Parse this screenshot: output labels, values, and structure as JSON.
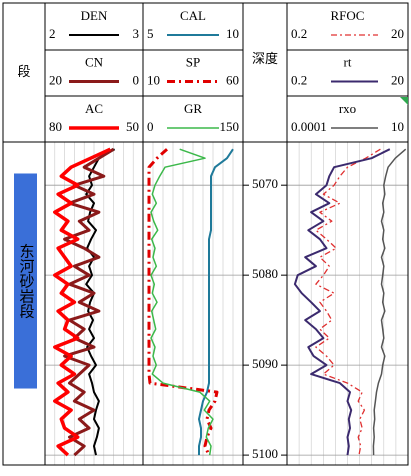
{
  "chart_data": {
    "type": "well_log",
    "zone_header": "段",
    "depth_label": "深度",
    "ylim": [
      5065.2,
      5101.1
    ],
    "yticks": [
      5070,
      5080,
      5090,
      5100
    ],
    "grid": true,
    "zones": [
      {
        "name": "东河砂岩段",
        "top": 5068.7,
        "bottom": 5092.6,
        "color": "#3a6fd8"
      }
    ],
    "depth": [
      5066,
      5067,
      5068,
      5069,
      5070,
      5071,
      5072,
      5073,
      5074,
      5075,
      5076,
      5077,
      5078,
      5079,
      5080,
      5081,
      5082,
      5083,
      5084,
      5085,
      5086,
      5087,
      5088,
      5089,
      5090,
      5091,
      5092,
      5093,
      5094,
      5095,
      5096,
      5097,
      5098,
      5099,
      5100
    ],
    "tracks": [
      {
        "curves": [
          {
            "name": "DEN",
            "scale": [
              2,
              3
            ],
            "log": false,
            "color": "#000000",
            "dash": "none",
            "width": 2,
            "values": [
              2.71,
              2.55,
              2.5,
              2.45,
              2.48,
              2.42,
              2.5,
              2.46,
              2.44,
              2.52,
              2.47,
              2.43,
              2.5,
              2.45,
              2.48,
              2.42,
              2.5,
              2.46,
              2.44,
              2.49,
              2.45,
              2.5,
              2.43,
              2.47,
              2.52,
              2.45,
              2.48,
              2.5,
              2.55,
              2.52,
              2.5,
              2.55,
              2.53,
              2.5,
              2.52
            ]
          },
          {
            "name": "CN",
            "scale": [
              20,
              0
            ],
            "log": false,
            "color": "#8b1a1a",
            "dash": "none",
            "width": 3,
            "values": [
              6,
              9,
              12,
              8,
              14,
              10,
              15,
              9,
              13,
              11,
              16,
              12,
              9,
              14,
              11,
              15,
              10,
              13,
              9,
              15,
              12,
              14,
              10,
              16,
              11,
              13,
              15,
              12,
              14,
              10,
              13,
              11,
              15,
              12,
              14
            ]
          },
          {
            "name": "AC",
            "scale": [
              80,
              50
            ],
            "log": false,
            "color": "#ff0000",
            "dash": "none",
            "width": 3.5,
            "values": [
              60,
              66,
              72,
              75,
              70,
              76,
              72,
              77,
              73,
              75,
              70,
              76,
              74,
              72,
              77,
              73,
              75,
              71,
              76,
              73,
              74,
              70,
              77,
              72,
              75,
              71,
              76,
              73,
              77,
              72,
              75,
              74,
              70,
              76,
              73
            ]
          }
        ]
      },
      {
        "curves": [
          {
            "name": "CAL",
            "scale": [
              5,
              10
            ],
            "log": false,
            "color": "#1f7a9a",
            "dash": "none",
            "width": 2,
            "values": [
              9.5,
              9.2,
              8.6,
              8.4,
              8.4,
              8.4,
              8.4,
              8.4,
              8.4,
              8.4,
              8.3,
              8.3,
              8.3,
              8.3,
              8.3,
              8.3,
              8.3,
              8.3,
              8.3,
              8.3,
              8.3,
              8.3,
              8.3,
              8.3,
              8.3,
              8.3,
              8.3,
              8.2,
              8.0,
              7.9,
              7.8,
              7.9,
              7.9,
              7.8,
              7.8
            ]
          },
          {
            "name": "SP",
            "scale": [
              10,
              60
            ],
            "log": false,
            "color": "#e00000",
            "dash": "8,4,2,4",
            "width": 3,
            "values": [
              22,
              17,
              13,
              13,
              13,
              13,
              13,
              13,
              13,
              13,
              13,
              13,
              13,
              13,
              13,
              13,
              13,
              13,
              13,
              13,
              13,
              13,
              13,
              13,
              13,
              13,
              13.5,
              47,
              46,
              43,
              42,
              44,
              42,
              41,
              43
            ]
          },
          {
            "name": "GR",
            "scale": [
              0,
              150
            ],
            "log": false,
            "color": "#3cb84a",
            "dash": "none",
            "width": 1.5,
            "values": [
              55,
              93,
              33,
              25,
              18,
              14,
              20,
              12,
              16,
              22,
              13,
              18,
              15,
              20,
              12,
              17,
              14,
              21,
              13,
              16,
              19,
              12,
              18,
              15,
              20,
              14,
              30,
              85,
              100,
              92,
              105,
              98,
              95,
              102,
              100
            ]
          }
        ]
      },
      {
        "curves": [
          {
            "name": "RFOC",
            "scale": [
              0.2,
              20
            ],
            "log": true,
            "color": "#e03030",
            "dash": "6,3,2,3",
            "width": 1.3,
            "values": [
              7,
              4,
              2,
              1.5,
              1.2,
              0.8,
              1.5,
              0.7,
              1.1,
              0.6,
              0.9,
              1.3,
              0.7,
              1.0,
              0.8,
              0.6,
              1.2,
              0.7,
              0.9,
              1.1,
              0.7,
              1.0,
              0.6,
              0.9,
              1.2,
              0.8,
              2,
              3.5,
              3,
              3.8,
              3.2,
              3.5,
              3,
              3.3,
              3.1
            ]
          },
          {
            "name": "rt",
            "scale": [
              0.2,
              20
            ],
            "log": true,
            "color": "#3b2a6e",
            "dash": "none",
            "width": 2,
            "values": [
              10,
              5,
              1.2,
              1.0,
              0.9,
              0.6,
              1.0,
              0.5,
              0.8,
              0.45,
              0.7,
              0.9,
              0.4,
              0.6,
              0.3,
              0.27,
              0.35,
              0.5,
              0.7,
              0.4,
              0.6,
              0.8,
              0.45,
              0.55,
              0.9,
              0.5,
              1.5,
              2.2,
              2.0,
              2.3,
              2.1,
              2.2,
              2.0,
              2.1,
              2.0
            ]
          },
          {
            "name": "rxo",
            "scale": [
              0.0001,
              10
            ],
            "log": true,
            "color": "#555555",
            "dash": "none",
            "width": 1.5,
            "values": [
              8,
              3,
              1.5,
              1.2,
              1.0,
              1.1,
              0.9,
              1.0,
              0.8,
              1.0,
              0.9,
              1.1,
              0.8,
              1.0,
              0.9,
              0.8,
              1.0,
              0.9,
              1.1,
              0.8,
              0.9,
              1.0,
              0.8,
              1.1,
              0.9,
              0.8,
              0.6,
              0.5,
              0.45,
              0.4,
              0.42,
              0.38,
              0.4,
              0.37,
              0.38
            ]
          }
        ]
      }
    ]
  }
}
